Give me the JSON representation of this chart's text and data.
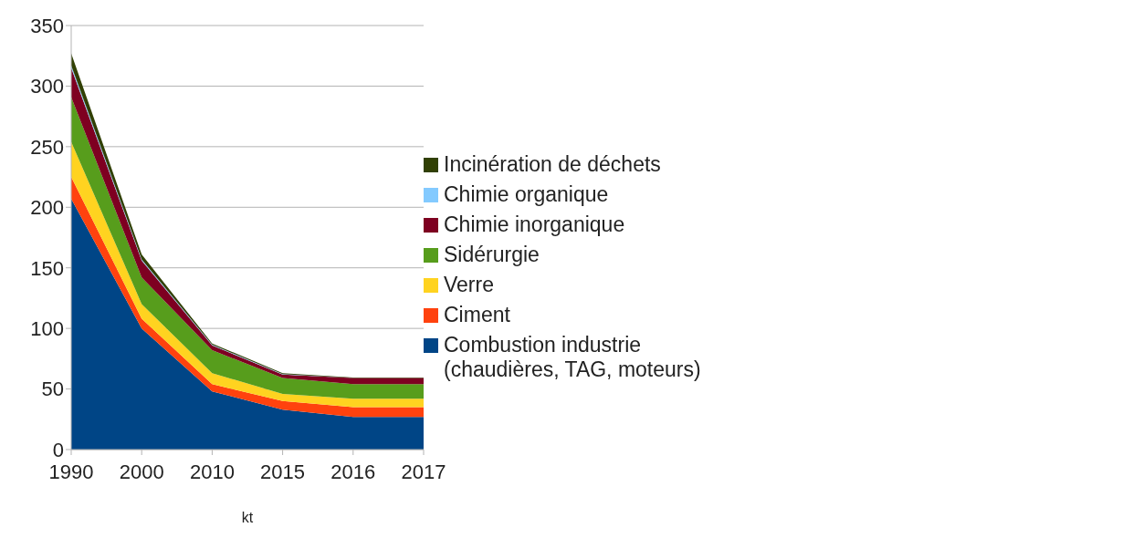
{
  "chart_data": {
    "type": "area",
    "stacked": true,
    "xlabel": "kt",
    "categories": [
      "1990",
      "2000",
      "2010",
      "2015",
      "2016",
      "2017"
    ],
    "series": [
      {
        "name": "Combustion industrie (chaudières, TAG, moteurs)",
        "color": "#004586",
        "values": [
          207,
          100,
          48,
          33,
          27,
          27
        ]
      },
      {
        "name": "Ciment",
        "color": "#ff420e",
        "values": [
          18,
          8,
          6,
          7,
          8,
          8
        ]
      },
      {
        "name": "Verre",
        "color": "#ffd320",
        "values": [
          29,
          12,
          9,
          6,
          7,
          7
        ]
      },
      {
        "name": "Sidérurgie",
        "color": "#579d1c",
        "values": [
          37,
          22,
          19,
          13,
          12,
          12
        ]
      },
      {
        "name": "Chimie inorganique",
        "color": "#7e0021",
        "values": [
          24,
          14,
          4,
          3,
          5,
          5
        ]
      },
      {
        "name": "Chimie organique",
        "color": "#83caff",
        "values": [
          2,
          1,
          0.5,
          0.3,
          0,
          0
        ]
      },
      {
        "name": "Incinération de déchets",
        "color": "#314004",
        "values": [
          10,
          4,
          1,
          0.7,
          0.5,
          0.5
        ]
      }
    ],
    "ylim": [
      0,
      350
    ],
    "yticks": [
      0,
      50,
      100,
      150,
      200,
      250,
      300,
      350
    ],
    "grid": "y",
    "legend": "right"
  }
}
